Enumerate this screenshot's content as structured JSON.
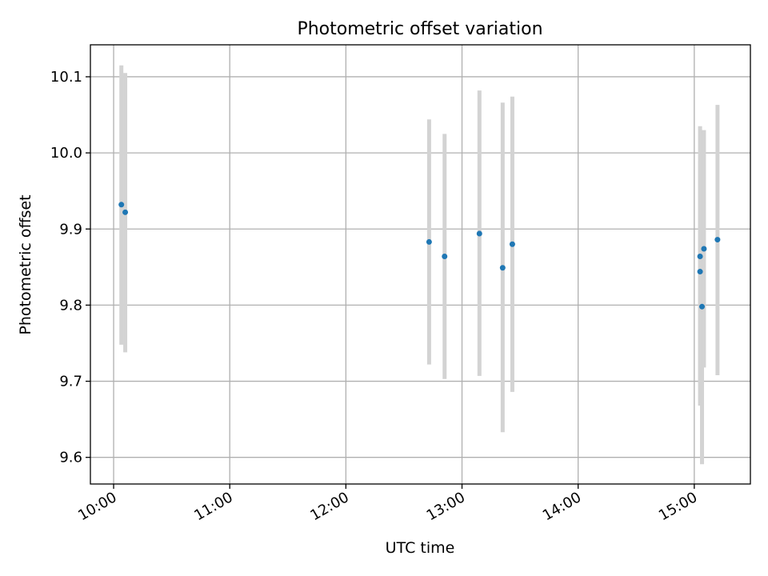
{
  "chart_data": {
    "type": "scatter",
    "title": "Photometric offset variation",
    "xlabel": "UTC time",
    "ylabel": "Photometric offset",
    "xlim": [
      "09:48",
      "15:29"
    ],
    "ylim": [
      9.565,
      10.142
    ],
    "x_ticks": [
      "10:00",
      "11:00",
      "12:00",
      "13:00",
      "14:00",
      "15:00"
    ],
    "y_ticks": [
      "9.6",
      "9.7",
      "9.8",
      "9.9",
      "10.0",
      "10.1"
    ],
    "grid": true,
    "marker_color": "#1f77b4",
    "errorbar_color": "#d3d3d3",
    "points": [
      {
        "x": "10:04",
        "y": 9.932,
        "yerr_low": 9.748,
        "yerr_high": 10.115
      },
      {
        "x": "10:06",
        "y": 9.922,
        "yerr_low": 9.738,
        "yerr_high": 10.105
      },
      {
        "x": "12:43",
        "y": 9.883,
        "yerr_low": 9.722,
        "yerr_high": 10.044
      },
      {
        "x": "12:51",
        "y": 9.864,
        "yerr_low": 9.703,
        "yerr_high": 10.025
      },
      {
        "x": "13:09",
        "y": 9.894,
        "yerr_low": 9.707,
        "yerr_high": 10.082
      },
      {
        "x": "13:21",
        "y": 9.849,
        "yerr_low": 9.633,
        "yerr_high": 10.066
      },
      {
        "x": "13:26",
        "y": 9.88,
        "yerr_low": 9.686,
        "yerr_high": 10.074
      },
      {
        "x": "15:03",
        "y": 9.864,
        "yerr_low": 9.668,
        "yerr_high": 10.035
      },
      {
        "x": "15:03",
        "y": 9.844,
        "yerr_low": 9.698,
        "yerr_high": 9.99
      },
      {
        "x": "15:04",
        "y": 9.798,
        "yerr_low": 9.591,
        "yerr_high": 10.005
      },
      {
        "x": "15:05",
        "y": 9.874,
        "yerr_low": 9.718,
        "yerr_high": 10.03
      },
      {
        "x": "15:12",
        "y": 9.886,
        "yerr_low": 9.708,
        "yerr_high": 10.063
      }
    ]
  }
}
